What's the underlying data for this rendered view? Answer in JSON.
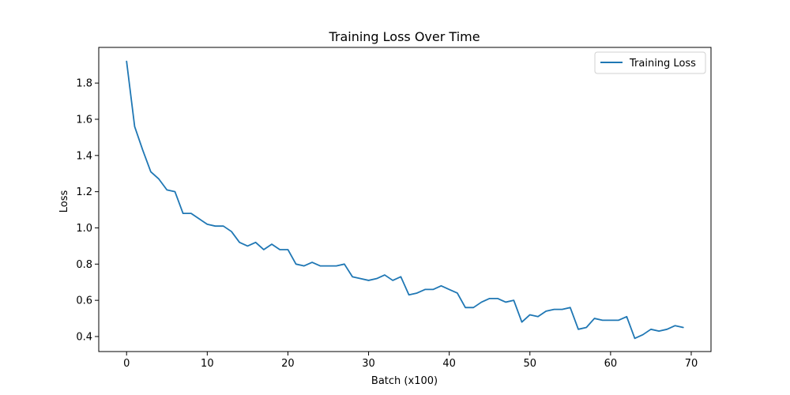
{
  "chart_data": {
    "type": "line",
    "title": "Training Loss Over Time",
    "xlabel": "Batch (x100)",
    "ylabel": "Loss",
    "xlim": [
      -3.45,
      72.45
    ],
    "ylim": [
      0.317,
      1.997
    ],
    "xticks": [
      0,
      10,
      20,
      30,
      40,
      50,
      60,
      70
    ],
    "yticks": [
      0.4,
      0.6,
      0.8,
      1.0,
      1.2,
      1.4,
      1.6,
      1.8
    ],
    "ytick_labels": [
      "0.4",
      "0.6",
      "0.8",
      "1.0",
      "1.2",
      "1.4",
      "1.6",
      "1.8"
    ],
    "grid": false,
    "legend": {
      "placement": "top-right",
      "entries": [
        "Training Loss"
      ]
    },
    "series": [
      {
        "name": "Training Loss",
        "color": "#1f77b4",
        "x": [
          0,
          1,
          2,
          3,
          4,
          5,
          6,
          7,
          8,
          9,
          10,
          11,
          12,
          13,
          14,
          15,
          16,
          17,
          18,
          19,
          20,
          21,
          22,
          23,
          24,
          25,
          26,
          27,
          28,
          29,
          30,
          31,
          32,
          33,
          34,
          35,
          36,
          37,
          38,
          39,
          40,
          41,
          42,
          43,
          44,
          45,
          46,
          47,
          48,
          49,
          50,
          51,
          52,
          53,
          54,
          55,
          56,
          57,
          58,
          59,
          60,
          61,
          62,
          63,
          64,
          65,
          66,
          67,
          68,
          69
        ],
        "y": [
          1.92,
          1.56,
          1.43,
          1.31,
          1.27,
          1.21,
          1.2,
          1.08,
          1.08,
          1.05,
          1.02,
          1.01,
          1.01,
          0.98,
          0.92,
          0.9,
          0.92,
          0.88,
          0.91,
          0.88,
          0.88,
          0.8,
          0.79,
          0.81,
          0.79,
          0.79,
          0.79,
          0.8,
          0.73,
          0.72,
          0.71,
          0.72,
          0.74,
          0.71,
          0.73,
          0.63,
          0.64,
          0.66,
          0.66,
          0.68,
          0.66,
          0.64,
          0.56,
          0.56,
          0.59,
          0.61,
          0.61,
          0.59,
          0.6,
          0.48,
          0.52,
          0.51,
          0.54,
          0.55,
          0.55,
          0.56,
          0.44,
          0.45,
          0.5,
          0.49,
          0.49,
          0.49,
          0.51,
          0.39,
          0.41,
          0.44,
          0.43,
          0.44,
          0.46,
          0.45
        ]
      }
    ]
  }
}
